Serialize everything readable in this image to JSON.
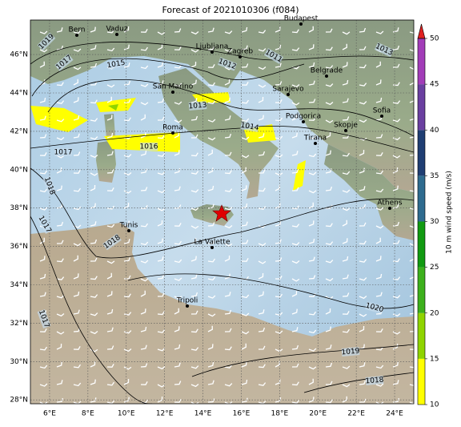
{
  "chart_data": {
    "type": "map",
    "title": "Forecast of 2021010306 (f084)",
    "xlim": [
      5,
      25
    ],
    "ylim": [
      27.8,
      47.8
    ],
    "xticks": [
      {
        "value": 6,
        "label": "6°E"
      },
      {
        "value": 8,
        "label": "8°E"
      },
      {
        "value": 10,
        "label": "10°E"
      },
      {
        "value": 12,
        "label": "12°E"
      },
      {
        "value": 14,
        "label": "14°E"
      },
      {
        "value": 16,
        "label": "16°E"
      },
      {
        "value": 18,
        "label": "18°E"
      },
      {
        "value": 20,
        "label": "20°E"
      },
      {
        "value": 22,
        "label": "22°E"
      },
      {
        "value": 24,
        "label": "24°E"
      }
    ],
    "yticks": [
      {
        "value": 28,
        "label": "28°N"
      },
      {
        "value": 30,
        "label": "30°N"
      },
      {
        "value": 32,
        "label": "32°N"
      },
      {
        "value": 34,
        "label": "34°N"
      },
      {
        "value": 36,
        "label": "36°N"
      },
      {
        "value": 38,
        "label": "38°N"
      },
      {
        "value": 40,
        "label": "40°N"
      },
      {
        "value": 42,
        "label": "42°N"
      },
      {
        "value": 44,
        "label": "44°N"
      },
      {
        "value": 46,
        "label": "46°N"
      }
    ],
    "grid": true,
    "cities": [
      "Bern",
      "Vaduz",
      "Budapest",
      "Ljubljana",
      "Zagreb",
      "Belgrade",
      "San Marino",
      "Sarajevo",
      "Sofia",
      "Podgorica",
      "Skopje",
      "Roma",
      "Tirana",
      "Athens",
      "Tunis",
      "La Valette",
      "Tripoli"
    ],
    "isobar_labels": [
      "1019",
      "1017",
      "1015",
      "1012",
      "1011",
      "1013",
      "1013",
      "1014",
      "1016",
      "1017",
      "1018",
      "1017",
      "1018",
      "1017",
      "1020",
      "1019",
      "1018"
    ],
    "colorbar": {
      "label": "10 m wind speed (m/s)",
      "lim": [
        10,
        50
      ],
      "ticks": [
        10,
        15,
        20,
        25,
        30,
        35,
        40,
        45,
        50
      ],
      "colors": [
        "#ffff00",
        "#8fd400",
        "#3cb01c",
        "#119a11",
        "#2e6b8f",
        "#1f3e73",
        "#6a3fa0",
        "#a23cb8"
      ],
      "extend_color": "#e02020"
    }
  }
}
